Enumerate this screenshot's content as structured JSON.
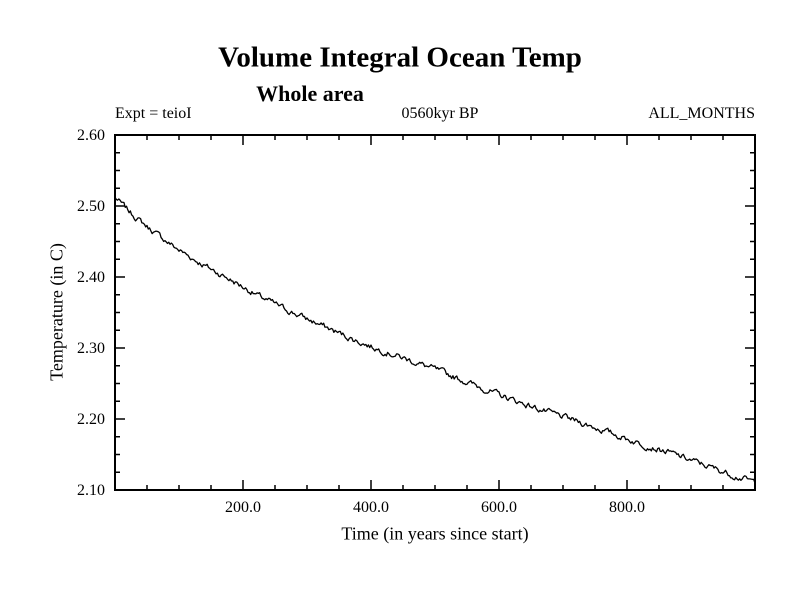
{
  "header": {
    "title": "Volume Integral Ocean Temp",
    "subtitle": "Whole area",
    "expt_label": "Expt = teioI",
    "period_label": "0560kyr BP",
    "months_label": "ALL_MONTHS"
  },
  "chart_data": {
    "type": "line",
    "title": "Volume Integral Ocean Temp",
    "subtitle": "Whole area",
    "annotations": [
      "Expt = teioI",
      "0560kyr BP",
      "ALL_MONTHS"
    ],
    "xlabel": "Time (in years since start)",
    "ylabel": "Temperature (in C)",
    "xlim": [
      0,
      1000
    ],
    "ylim": [
      2.1,
      2.6
    ],
    "x_ticks": [
      200,
      400,
      600,
      800
    ],
    "x_tick_labels": [
      "200.0",
      "400.0",
      "600.0",
      "800.0"
    ],
    "y_ticks": [
      2.1,
      2.2,
      2.3,
      2.4,
      2.5,
      2.6
    ],
    "y_tick_labels": [
      "2.10",
      "2.20",
      "2.30",
      "2.40",
      "2.50",
      "2.60"
    ],
    "x_minor_step": 50,
    "y_minor_step": 0.025,
    "grid": false,
    "legend": false,
    "line_color": "#000000",
    "series": [
      {
        "name": "volume-integral-ocean-temp",
        "x": [
          0,
          25,
          50,
          75,
          100,
          125,
          150,
          175,
          200,
          225,
          250,
          275,
          300,
          325,
          350,
          375,
          400,
          425,
          450,
          475,
          500,
          525,
          550,
          575,
          600,
          625,
          650,
          675,
          700,
          725,
          750,
          775,
          800,
          825,
          850,
          875,
          900,
          925,
          950,
          975,
          1000
        ],
        "y": [
          2.512,
          2.49,
          2.471,
          2.454,
          2.438,
          2.424,
          2.411,
          2.399,
          2.386,
          2.373,
          2.362,
          2.351,
          2.341,
          2.331,
          2.321,
          2.311,
          2.302,
          2.294,
          2.286,
          2.278,
          2.27,
          2.261,
          2.252,
          2.243,
          2.234,
          2.226,
          2.218,
          2.21,
          2.203,
          2.196,
          2.188,
          2.18,
          2.172,
          2.164,
          2.157,
          2.15,
          2.142,
          2.134,
          2.126,
          2.118,
          2.111
        ]
      }
    ]
  }
}
